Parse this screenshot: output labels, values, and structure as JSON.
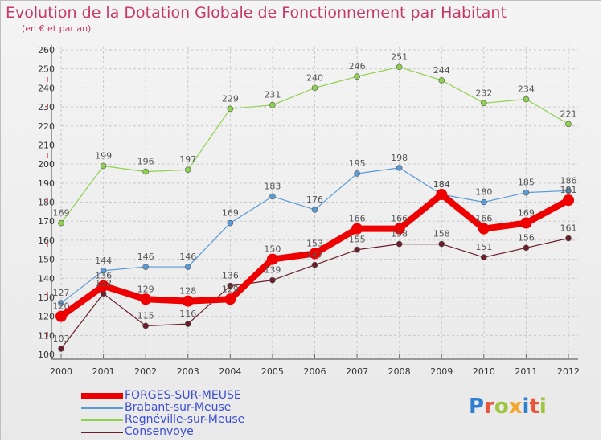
{
  "title": "Evolution de la Dotation Globale de Fonctionnement par Habitant",
  "subtitle": "(en € et par an)",
  "logo_text": "Proxiti",
  "chart_data": {
    "type": "line",
    "x": [
      "2000",
      "2001",
      "2002",
      "2003",
      "2004",
      "2005",
      "2006",
      "2007",
      "2008",
      "2009",
      "2010",
      "2011",
      "2012"
    ],
    "ylim": [
      100,
      260
    ],
    "yticks": [
      100,
      110,
      120,
      130,
      140,
      150,
      160,
      170,
      180,
      190,
      200,
      210,
      220,
      230,
      240,
      250,
      260
    ],
    "grid": true,
    "legend_position": "bottom-left",
    "series": [
      {
        "name": "FORGES-SUR-MEUSE",
        "color": "#ee0000",
        "values": [
          120,
          136,
          129,
          128,
          129,
          150,
          153,
          166,
          166,
          184,
          166,
          169,
          181
        ]
      },
      {
        "name": "Brabant-sur-Meuse",
        "color": "#5b9bd5",
        "values": [
          127,
          144,
          146,
          146,
          169,
          183,
          176,
          195,
          198,
          184,
          180,
          185,
          186
        ]
      },
      {
        "name": "Regnéville-sur-Meuse",
        "color": "#8fd14f",
        "values": [
          169,
          199,
          196,
          197,
          229,
          231,
          240,
          246,
          251,
          244,
          232,
          234,
          221
        ]
      },
      {
        "name": "Consenvoye",
        "color": "#6b1f2a",
        "values": [
          103,
          132,
          115,
          116,
          136,
          139,
          147,
          155,
          158,
          158,
          151,
          156,
          161
        ]
      }
    ]
  }
}
